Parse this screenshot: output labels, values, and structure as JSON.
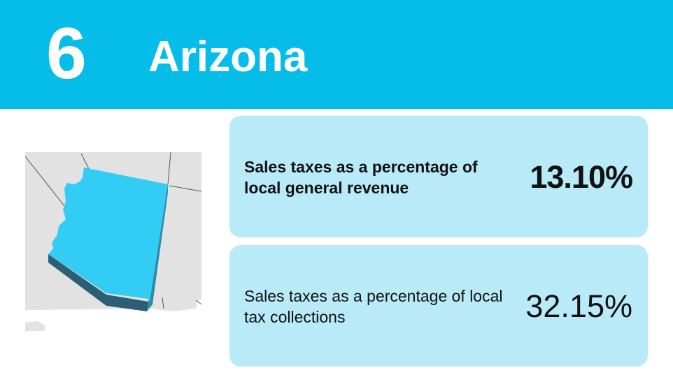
{
  "header": {
    "rank": "6",
    "state": "Arizona"
  },
  "map": {
    "icon": "arizona-map-icon",
    "highlight_color": "#33ccf5"
  },
  "stats": [
    {
      "label": "Sales taxes as a percentage of local general revenue",
      "value": "13.10%"
    },
    {
      "label": "Sales taxes as a percentage of local tax collections",
      "value": "32.15%"
    }
  ],
  "colors": {
    "header_bg": "#05bde8",
    "card_bg": "#b8eaf8"
  }
}
